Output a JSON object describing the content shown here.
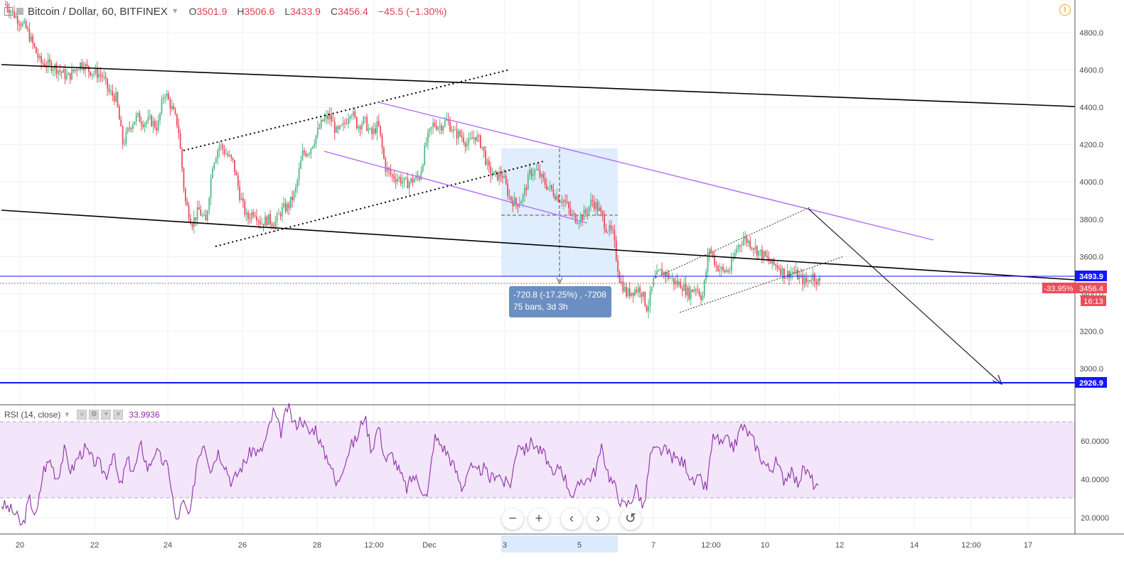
{
  "header": {
    "symbol": "Bitcoin / Dollar, 60, BITFINEX",
    "o_label": "O",
    "o_value": "3501.9",
    "h_label": "H",
    "h_value": "3506.6",
    "l_label": "L",
    "l_value": "3433.9",
    "c_label": "C",
    "c_value": "3456.4",
    "change": "−45.5 (−1.30%)"
  },
  "measure": {
    "line1": "-720.8 (-17.25%) , -7208",
    "line2": "75 bars, 3d 3h"
  },
  "price_labels": {
    "blue_line": "3493.9",
    "current_pct": "-33.95%",
    "current": "3456.4",
    "countdown": "16:13",
    "target": "2926.9"
  },
  "rsi": {
    "title": "RSI (14, close)",
    "value": "33.9936",
    "levels": [
      70,
      30
    ]
  },
  "toolbar": {
    "zoom_out": "−",
    "zoom_in": "+",
    "scroll_left": "‹",
    "scroll_right": "›",
    "reset": "↺"
  },
  "icons": {
    "warning": "warning-icon"
  },
  "colors": {
    "up": "#53b987",
    "down": "#eb4d5c",
    "rsi_line": "#8e2fa8",
    "rsi_band": "#f3e5fa",
    "trend_black": "#000000",
    "trend_purple": "#b36aff",
    "level_blue": "#1515ff",
    "measure_fill": "#dbeafc",
    "grid": "#eef0f3"
  },
  "chart_data": {
    "type": "candlestick",
    "ylim": [
      2700,
      4950
    ],
    "yticks": [
      4800,
      4600,
      4400,
      4200,
      4000,
      3800,
      3600,
      3400,
      3200,
      3000
    ],
    "xticks": [
      "20",
      "22",
      "24",
      "26",
      "28",
      "12:00",
      "Dec",
      "3",
      "5",
      "7",
      "12:00",
      "10",
      "12",
      "14",
      "12:00",
      "17"
    ],
    "rsi_ticks": [
      60,
      40,
      20
    ],
    "ohlc_path": [
      [
        0,
        4950
      ],
      [
        3,
        4820
      ],
      [
        5,
        4640
      ],
      [
        7,
        4620
      ],
      [
        9,
        4560
      ],
      [
        11,
        4640
      ],
      [
        12,
        4600
      ],
      [
        14,
        4570
      ],
      [
        15,
        4480
      ],
      [
        16,
        4450
      ],
      [
        17,
        4200
      ],
      [
        18,
        4300
      ],
      [
        19,
        4350
      ],
      [
        20,
        4320
      ],
      [
        21,
        4330
      ],
      [
        22,
        4290
      ],
      [
        23,
        4490
      ],
      [
        24,
        4400
      ],
      [
        25,
        4300
      ],
      [
        26,
        3900
      ],
      [
        27,
        3780
      ],
      [
        28,
        3850
      ],
      [
        29,
        3780
      ],
      [
        30,
        4100
      ],
      [
        31,
        4200
      ],
      [
        32,
        4150
      ],
      [
        33,
        4100
      ],
      [
        34,
        3920
      ],
      [
        35,
        3800
      ],
      [
        36,
        3850
      ],
      [
        37,
        3780
      ],
      [
        38,
        3800
      ],
      [
        39,
        3780
      ],
      [
        40,
        3850
      ],
      [
        41,
        3870
      ],
      [
        42,
        3950
      ],
      [
        43,
        4150
      ],
      [
        44,
        4170
      ],
      [
        45,
        4250
      ],
      [
        46,
        4330
      ],
      [
        47,
        4350
      ],
      [
        48,
        4260
      ],
      [
        49,
        4300
      ],
      [
        50,
        4390
      ],
      [
        51,
        4300
      ],
      [
        52,
        4330
      ],
      [
        53,
        4250
      ],
      [
        54,
        4310
      ],
      [
        55,
        4080
      ],
      [
        56,
        4030
      ],
      [
        57,
        4020
      ],
      [
        58,
        3990
      ],
      [
        59,
        4010
      ],
      [
        60,
        4030
      ],
      [
        61,
        4220
      ],
      [
        62,
        4310
      ],
      [
        63,
        4300
      ],
      [
        64,
        4330
      ],
      [
        65,
        4260
      ],
      [
        66,
        4250
      ],
      [
        67,
        4200
      ],
      [
        68,
        4250
      ],
      [
        69,
        4200
      ],
      [
        70,
        4060
      ],
      [
        71,
        4030
      ],
      [
        72,
        4040
      ],
      [
        73,
        3920
      ],
      [
        74,
        3880
      ],
      [
        75,
        3920
      ],
      [
        76,
        4050
      ],
      [
        77,
        4060
      ],
      [
        78,
        4000
      ],
      [
        79,
        3960
      ],
      [
        80,
        3920
      ],
      [
        81,
        3900
      ],
      [
        82,
        3820
      ],
      [
        83,
        3800
      ],
      [
        84,
        3830
      ],
      [
        85,
        3900
      ],
      [
        86,
        3850
      ],
      [
        87,
        3760
      ],
      [
        88,
        3720
      ],
      [
        89,
        3480
      ],
      [
        90,
        3400
      ],
      [
        91,
        3420
      ],
      [
        92,
        3430
      ],
      [
        93,
        3320
      ],
      [
        94,
        3480
      ],
      [
        95,
        3520
      ],
      [
        96,
        3500
      ],
      [
        97,
        3460
      ],
      [
        98,
        3450
      ],
      [
        99,
        3400
      ],
      [
        100,
        3440
      ],
      [
        101,
        3380
      ],
      [
        102,
        3650
      ],
      [
        103,
        3550
      ],
      [
        104,
        3520
      ],
      [
        105,
        3530
      ],
      [
        106,
        3650
      ],
      [
        107,
        3700
      ],
      [
        108,
        3670
      ],
      [
        109,
        3630
      ],
      [
        110,
        3600
      ],
      [
        111,
        3560
      ],
      [
        112,
        3550
      ],
      [
        113,
        3500
      ],
      [
        114,
        3520
      ],
      [
        115,
        3490
      ],
      [
        116,
        3460
      ],
      [
        117,
        3500
      ],
      [
        118,
        3456
      ]
    ],
    "ohlc_x_range": [
      0,
      118
    ],
    "rsi_path": [
      [
        0,
        27
      ],
      [
        1,
        25
      ],
      [
        2,
        22
      ],
      [
        3,
        15
      ],
      [
        4,
        30
      ],
      [
        5,
        20
      ],
      [
        6,
        45
      ],
      [
        7,
        50
      ],
      [
        8,
        40
      ],
      [
        9,
        55
      ],
      [
        10,
        44
      ],
      [
        11,
        52
      ],
      [
        12,
        56
      ],
      [
        13,
        50
      ],
      [
        14,
        48
      ],
      [
        15,
        42
      ],
      [
        16,
        54
      ],
      [
        17,
        35
      ],
      [
        18,
        50
      ],
      [
        19,
        44
      ],
      [
        20,
        58
      ],
      [
        21,
        45
      ],
      [
        22,
        55
      ],
      [
        23,
        50
      ],
      [
        24,
        45
      ],
      [
        25,
        17
      ],
      [
        26,
        28
      ],
      [
        27,
        20
      ],
      [
        28,
        50
      ],
      [
        29,
        60
      ],
      [
        30,
        45
      ],
      [
        31,
        55
      ],
      [
        32,
        48
      ],
      [
        33,
        38
      ],
      [
        34,
        44
      ],
      [
        35,
        50
      ],
      [
        36,
        56
      ],
      [
        37,
        53
      ],
      [
        38,
        62
      ],
      [
        39,
        76
      ],
      [
        40,
        64
      ],
      [
        41,
        78
      ],
      [
        42,
        68
      ],
      [
        43,
        72
      ],
      [
        44,
        64
      ],
      [
        45,
        67
      ],
      [
        46,
        55
      ],
      [
        47,
        50
      ],
      [
        48,
        36
      ],
      [
        49,
        48
      ],
      [
        50,
        57
      ],
      [
        51,
        62
      ],
      [
        52,
        74
      ],
      [
        53,
        55
      ],
      [
        54,
        68
      ],
      [
        55,
        50
      ],
      [
        56,
        53
      ],
      [
        57,
        44
      ],
      [
        58,
        35
      ],
      [
        59,
        42
      ],
      [
        60,
        37
      ],
      [
        61,
        30
      ],
      [
        62,
        62
      ],
      [
        63,
        58
      ],
      [
        64,
        53
      ],
      [
        65,
        45
      ],
      [
        66,
        35
      ],
      [
        67,
        47
      ],
      [
        68,
        43
      ],
      [
        69,
        46
      ],
      [
        70,
        40
      ],
      [
        71,
        44
      ],
      [
        72,
        38
      ],
      [
        73,
        38
      ],
      [
        74,
        60
      ],
      [
        75,
        55
      ],
      [
        76,
        60
      ],
      [
        77,
        55
      ],
      [
        78,
        52
      ],
      [
        79,
        40
      ],
      [
        80,
        48
      ],
      [
        81,
        38
      ],
      [
        82,
        30
      ],
      [
        83,
        40
      ],
      [
        84,
        40
      ],
      [
        85,
        44
      ],
      [
        86,
        56
      ],
      [
        87,
        42
      ],
      [
        88,
        35
      ],
      [
        89,
        26
      ],
      [
        90,
        28
      ],
      [
        91,
        36
      ],
      [
        92,
        24
      ],
      [
        93,
        54
      ],
      [
        94,
        55
      ],
      [
        95,
        55
      ],
      [
        96,
        52
      ],
      [
        97,
        50
      ],
      [
        98,
        48
      ],
      [
        99,
        38
      ],
      [
        100,
        40
      ],
      [
        101,
        35
      ],
      [
        102,
        64
      ],
      [
        103,
        58
      ],
      [
        104,
        60
      ],
      [
        105,
        57
      ],
      [
        106,
        68
      ],
      [
        107,
        64
      ],
      [
        108,
        58
      ],
      [
        109,
        50
      ],
      [
        110,
        45
      ],
      [
        111,
        49
      ],
      [
        112,
        40
      ],
      [
        113,
        44
      ],
      [
        114,
        38
      ],
      [
        115,
        46
      ],
      [
        116,
        40
      ],
      [
        117,
        34
      ]
    ]
  }
}
